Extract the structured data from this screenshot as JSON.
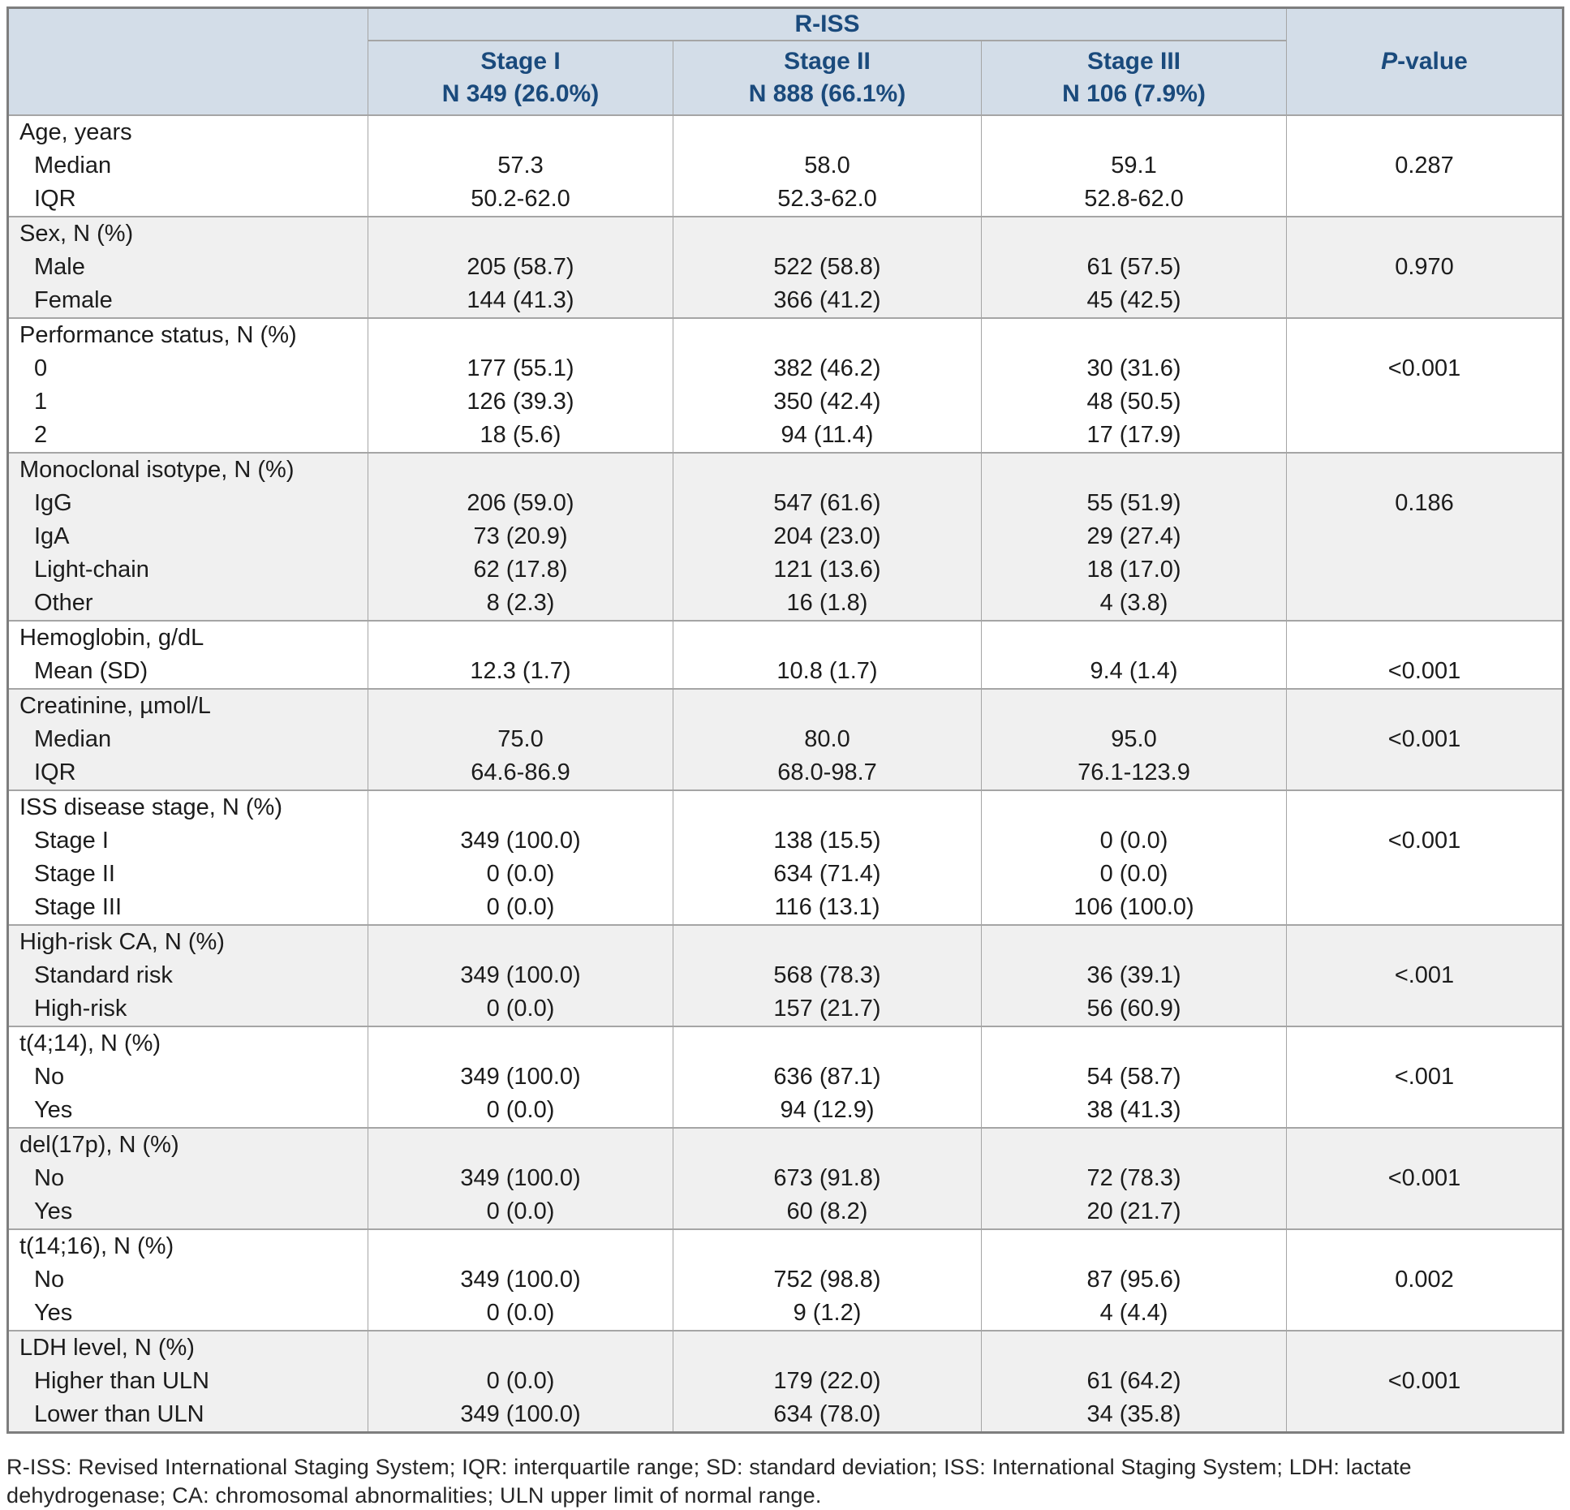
{
  "colors": {
    "header_bg": "#d3dde8",
    "header_text": "#1a4a7c",
    "stripe": "#f0f0f0",
    "grid": "#a5a5a5",
    "outer_border": "#7e7e7e"
  },
  "table": {
    "header": {
      "riss_label": "R-ISS",
      "stage_columns": [
        {
          "title": "Stage I",
          "count": "N 349 (26.0%)"
        },
        {
          "title": "Stage II",
          "count": "N 888 (66.1%)"
        },
        {
          "title": "Stage III",
          "count": "N 106 (7.9%)"
        }
      ],
      "pvalue": {
        "italic": "P",
        "rest": "-value"
      }
    },
    "groups": [
      {
        "label": "Age, years",
        "shaded": false,
        "p_value": "0.287",
        "rows": [
          {
            "label": "Median",
            "values": [
              "57.3",
              "58.0",
              "59.1"
            ]
          },
          {
            "label": "IQR",
            "values": [
              "50.2-62.0",
              "52.3-62.0",
              "52.8-62.0"
            ]
          }
        ]
      },
      {
        "label": "Sex, N (%)",
        "shaded": true,
        "p_value": "0.970",
        "rows": [
          {
            "label": "Male",
            "values": [
              "205 (58.7)",
              "522 (58.8)",
              "61 (57.5)"
            ]
          },
          {
            "label": "Female",
            "values": [
              "144 (41.3)",
              "366 (41.2)",
              "45 (42.5)"
            ]
          }
        ]
      },
      {
        "label": "Performance status, N (%)",
        "shaded": false,
        "p_value": "<0.001",
        "rows": [
          {
            "label": "0",
            "values": [
              "177 (55.1)",
              "382 (46.2)",
              "30 (31.6)"
            ]
          },
          {
            "label": "1",
            "values": [
              "126 (39.3)",
              "350 (42.4)",
              "48 (50.5)"
            ]
          },
          {
            "label": "2",
            "values": [
              "18 (5.6)",
              "94 (11.4)",
              "17 (17.9)"
            ]
          }
        ]
      },
      {
        "label": "Monoclonal isotype, N (%)",
        "shaded": true,
        "p_value": "0.186",
        "rows": [
          {
            "label": "IgG",
            "values": [
              "206 (59.0)",
              "547 (61.6)",
              "55 (51.9)"
            ]
          },
          {
            "label": "IgA",
            "values": [
              "73 (20.9)",
              "204 (23.0)",
              "29 (27.4)"
            ]
          },
          {
            "label": "Light-chain",
            "values": [
              "62 (17.8)",
              "121 (13.6)",
              "18 (17.0)"
            ]
          },
          {
            "label": "Other",
            "values": [
              "8 (2.3)",
              "16 (1.8)",
              "4 (3.8)"
            ]
          }
        ]
      },
      {
        "label": "Hemoglobin, g/dL",
        "shaded": false,
        "p_value": "<0.001",
        "rows": [
          {
            "label": "Mean (SD)",
            "values": [
              "12.3 (1.7)",
              "10.8 (1.7)",
              "9.4 (1.4)"
            ]
          }
        ]
      },
      {
        "label": "Creatinine, µmol/L",
        "shaded": true,
        "p_value": "<0.001",
        "rows": [
          {
            "label": "Median",
            "values": [
              "75.0",
              "80.0",
              "95.0"
            ]
          },
          {
            "label": "IQR",
            "values": [
              "64.6-86.9",
              "68.0-98.7",
              "76.1-123.9"
            ]
          }
        ]
      },
      {
        "label": "ISS disease stage, N (%)",
        "shaded": false,
        "p_value": "<0.001",
        "rows": [
          {
            "label": "Stage I",
            "values": [
              "349 (100.0)",
              "138 (15.5)",
              "0 (0.0)"
            ]
          },
          {
            "label": "Stage II",
            "values": [
              "0 (0.0)",
              "634 (71.4)",
              "0 (0.0)"
            ]
          },
          {
            "label": "Stage III",
            "values": [
              "0 (0.0)",
              "116 (13.1)",
              "106 (100.0)"
            ]
          }
        ]
      },
      {
        "label": "High-risk CA, N (%)",
        "shaded": true,
        "p_value": "<.001",
        "rows": [
          {
            "label": "Standard risk",
            "values": [
              "349 (100.0)",
              "568 (78.3)",
              "36 (39.1)"
            ]
          },
          {
            "label": "High-risk",
            "values": [
              "0 (0.0)",
              "157 (21.7)",
              "56 (60.9)"
            ]
          }
        ]
      },
      {
        "label": "t(4;14), N (%)",
        "shaded": false,
        "p_value": "<.001",
        "rows": [
          {
            "label": "No",
            "values": [
              "349 (100.0)",
              "636 (87.1)",
              "54 (58.7)"
            ]
          },
          {
            "label": "Yes",
            "values": [
              "0 (0.0)",
              "94 (12.9)",
              "38 (41.3)"
            ]
          }
        ]
      },
      {
        "label": "del(17p), N (%)",
        "shaded": true,
        "p_value": "<0.001",
        "rows": [
          {
            "label": "No",
            "values": [
              "349 (100.0)",
              "673 (91.8)",
              "72 (78.3)"
            ]
          },
          {
            "label": "Yes",
            "values": [
              "0 (0.0)",
              "60 (8.2)",
              "20 (21.7)"
            ]
          }
        ]
      },
      {
        "label": "t(14;16), N (%)",
        "shaded": false,
        "p_value": "0.002",
        "rows": [
          {
            "label": "No",
            "values": [
              "349 (100.0)",
              "752 (98.8)",
              "87 (95.6)"
            ]
          },
          {
            "label": "Yes",
            "values": [
              "0 (0.0)",
              "9 (1.2)",
              "4 (4.4)"
            ]
          }
        ]
      },
      {
        "label": "LDH level, N (%)",
        "shaded": true,
        "p_value": "<0.001",
        "rows": [
          {
            "label": "Higher than ULN",
            "values": [
              "0 (0.0)",
              "179 (22.0)",
              "61 (64.2)"
            ]
          },
          {
            "label": "Lower than ULN",
            "values": [
              "349 (100.0)",
              "634 (78.0)",
              "34 (35.8)"
            ]
          }
        ]
      }
    ]
  },
  "footnote": "R-ISS: Revised International Staging System;  IQR: interquartile range; SD: standard deviation; ISS: International Staging System; LDH: lactate dehydrogenase; CA: chromosomal abnormalities; ULN upper limit of normal range."
}
